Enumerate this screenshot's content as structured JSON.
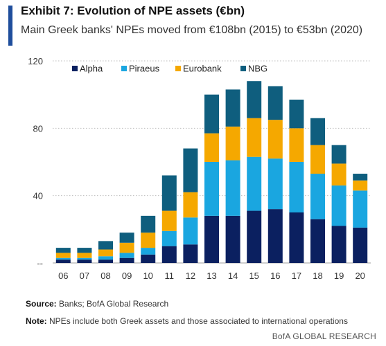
{
  "header": {
    "title": "Exhibit 7: Evolution of NPE assets (€bn)",
    "subtitle": "Main Greek banks' NPEs moved from €108bn (2015) to €53bn (2020)"
  },
  "footer": {
    "source_label": "Source:",
    "source_text": "Banks; BofA Global Research",
    "note_label": "Note:",
    "note_text": "NPEs include both Greek assets and those associated to international operations",
    "brand": "BofA GLOBAL RESEARCH"
  },
  "chart_data": {
    "type": "bar",
    "stacked": true,
    "categories": [
      "06",
      "07",
      "08",
      "09",
      "10",
      "11",
      "12",
      "13",
      "14",
      "15",
      "16",
      "17",
      "18",
      "19",
      "20"
    ],
    "series": [
      {
        "name": "Alpha",
        "color": "#0b2060",
        "values": [
          2,
          2,
          2,
          3,
          5,
          10,
          11,
          28,
          28,
          31,
          32,
          30,
          26,
          22,
          21
        ]
      },
      {
        "name": "Piraeus",
        "color": "#1aa6e0",
        "values": [
          1,
          1,
          2,
          3,
          4,
          9,
          16,
          32,
          33,
          32,
          30,
          30,
          27,
          24,
          22
        ]
      },
      {
        "name": "Eurobank",
        "color": "#f5a800",
        "values": [
          3,
          3,
          4,
          6,
          9,
          12,
          15,
          17,
          20,
          23,
          23,
          20,
          17,
          13,
          6
        ]
      },
      {
        "name": "NBG",
        "color": "#0f5e7e",
        "values": [
          3,
          3,
          5,
          6,
          10,
          21,
          26,
          23,
          22,
          22,
          20,
          17,
          16,
          11,
          4
        ]
      }
    ],
    "ylim": [
      0,
      120
    ],
    "yticks": [
      0,
      40,
      80,
      120
    ],
    "ytick_labels": [
      "--",
      "40",
      "80",
      "120"
    ],
    "legend_position": "top",
    "grid": true
  }
}
